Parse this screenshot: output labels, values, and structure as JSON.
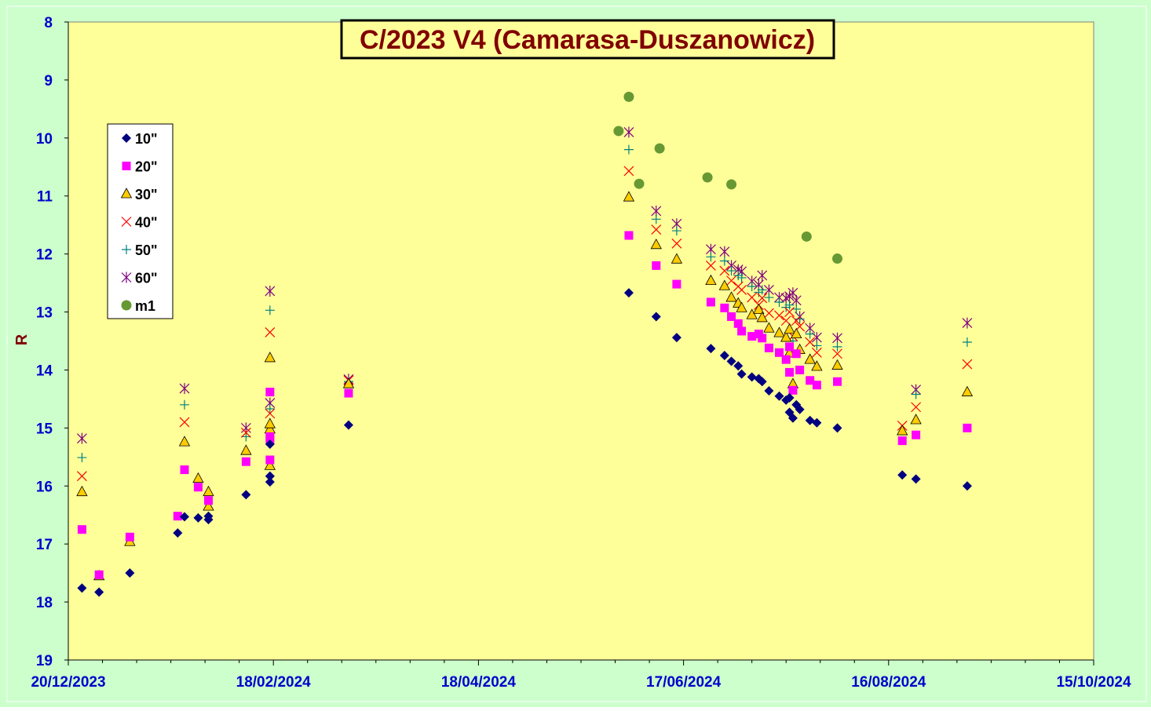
{
  "chart_data": {
    "type": "scatter",
    "title": "C/2023 V4 (Camarasa-Duszanowicz)",
    "ylabel": "R",
    "xlabel": "",
    "y_reversed": true,
    "ylim": [
      8,
      19
    ],
    "yticks": [
      8,
      9,
      10,
      11,
      12,
      13,
      14,
      15,
      16,
      17,
      18,
      19
    ],
    "xlim": [
      "2023-12-20",
      "2024-10-15"
    ],
    "xticks": [
      "20/12/2023",
      "18/02/2024",
      "18/04/2024",
      "17/06/2024",
      "16/08/2024",
      "15/10/2024"
    ],
    "grid": false,
    "legend_position": "top-left",
    "colors": {
      "page_background": "#ccffcc",
      "plot_background": "#ffff99",
      "axis_text": "#0000cc",
      "title_text": "#800000",
      "ylabel_text": "#800000",
      "series": {
        "10\"": "#000080",
        "20\"": "#ff00ff",
        "30\"": "#ffcc00",
        "40\"": "#ff0000",
        "50\"": "#008080",
        "60\"": "#800080",
        "m1": "#669933"
      }
    },
    "series": [
      {
        "name": "10\"",
        "marker": "diamond",
        "points": [
          [
            "2023-12-24",
            17.76
          ],
          [
            "2023-12-29",
            17.83
          ],
          [
            "2024-01-07",
            17.5
          ],
          [
            "2024-01-21",
            16.81
          ],
          [
            "2024-01-23",
            16.53
          ],
          [
            "2024-01-27",
            16.55
          ],
          [
            "2024-01-30",
            16.52
          ],
          [
            "2024-01-30",
            16.58
          ],
          [
            "2024-02-10",
            16.15
          ],
          [
            "2024-02-17",
            15.83
          ],
          [
            "2024-02-17",
            15.93
          ],
          [
            "2024-02-17",
            15.83
          ],
          [
            "2024-02-17",
            15.28
          ],
          [
            "2024-03-11",
            14.95
          ],
          [
            "2024-06-01",
            12.67
          ],
          [
            "2024-06-09",
            13.08
          ],
          [
            "2024-06-15",
            13.44
          ],
          [
            "2024-06-25",
            13.63
          ],
          [
            "2024-06-29",
            13.75
          ],
          [
            "2024-07-01",
            13.85
          ],
          [
            "2024-07-03",
            13.93
          ],
          [
            "2024-07-04",
            14.07
          ],
          [
            "2024-07-07",
            14.12
          ],
          [
            "2024-07-09",
            14.15
          ],
          [
            "2024-07-10",
            14.2
          ],
          [
            "2024-07-12",
            14.36
          ],
          [
            "2024-07-15",
            14.45
          ],
          [
            "2024-07-17",
            14.52
          ],
          [
            "2024-07-18",
            14.48
          ],
          [
            "2024-07-18",
            14.73
          ],
          [
            "2024-07-19",
            14.83
          ],
          [
            "2024-07-20",
            14.6
          ],
          [
            "2024-07-21",
            14.68
          ],
          [
            "2024-07-24",
            14.87
          ],
          [
            "2024-07-26",
            14.91
          ],
          [
            "2024-08-01",
            15.0
          ],
          [
            "2024-08-20",
            15.81
          ],
          [
            "2024-08-24",
            15.88
          ],
          [
            "2024-09-08",
            16.0
          ]
        ]
      },
      {
        "name": "20\"",
        "marker": "square",
        "points": [
          [
            "2023-12-24",
            16.75
          ],
          [
            "2023-12-29",
            17.53
          ],
          [
            "2024-01-07",
            16.88
          ],
          [
            "2024-01-21",
            16.52
          ],
          [
            "2024-01-23",
            15.72
          ],
          [
            "2024-01-27",
            16.02
          ],
          [
            "2024-01-30",
            16.25
          ],
          [
            "2024-02-10",
            15.58
          ],
          [
            "2024-02-17",
            15.2
          ],
          [
            "2024-02-17",
            15.55
          ],
          [
            "2024-02-17",
            15.15
          ],
          [
            "2024-02-17",
            14.38
          ],
          [
            "2024-03-11",
            14.4
          ],
          [
            "2024-06-01",
            11.68
          ],
          [
            "2024-06-09",
            12.2
          ],
          [
            "2024-06-15",
            12.52
          ],
          [
            "2024-06-25",
            12.83
          ],
          [
            "2024-06-29",
            12.93
          ],
          [
            "2024-07-01",
            13.08
          ],
          [
            "2024-07-03",
            13.2
          ],
          [
            "2024-07-04",
            13.33
          ],
          [
            "2024-07-07",
            13.42
          ],
          [
            "2024-07-09",
            13.38
          ],
          [
            "2024-07-10",
            13.45
          ],
          [
            "2024-07-12",
            13.62
          ],
          [
            "2024-07-15",
            13.7
          ],
          [
            "2024-07-17",
            13.82
          ],
          [
            "2024-07-18",
            13.6
          ],
          [
            "2024-07-18",
            14.04
          ],
          [
            "2024-07-19",
            14.35
          ],
          [
            "2024-07-20",
            13.72
          ],
          [
            "2024-07-21",
            14.0
          ],
          [
            "2024-07-24",
            14.18
          ],
          [
            "2024-07-26",
            14.26
          ],
          [
            "2024-08-01",
            14.2
          ],
          [
            "2024-08-20",
            15.22
          ],
          [
            "2024-08-24",
            15.12
          ],
          [
            "2024-09-08",
            15.0
          ]
        ]
      },
      {
        "name": "30\"",
        "marker": "triangle",
        "points": [
          [
            "2023-12-24",
            16.1
          ],
          [
            "2023-12-29",
            17.55
          ],
          [
            "2024-01-07",
            16.96
          ],
          [
            "2024-01-23",
            15.24
          ],
          [
            "2024-01-27",
            15.87
          ],
          [
            "2024-01-30",
            16.35
          ],
          [
            "2024-01-30",
            16.1
          ],
          [
            "2024-02-10",
            15.39
          ],
          [
            "2024-02-17",
            15.02
          ],
          [
            "2024-02-17",
            14.93
          ],
          [
            "2024-02-17",
            15.65
          ],
          [
            "2024-02-17",
            13.79
          ],
          [
            "2024-03-11",
            14.24
          ],
          [
            "2024-06-01",
            11.02
          ],
          [
            "2024-06-09",
            11.84
          ],
          [
            "2024-06-15",
            12.09
          ],
          [
            "2024-06-25",
            12.46
          ],
          [
            "2024-06-29",
            12.55
          ],
          [
            "2024-07-01",
            12.75
          ],
          [
            "2024-07-03",
            12.85
          ],
          [
            "2024-07-04",
            12.93
          ],
          [
            "2024-07-07",
            13.05
          ],
          [
            "2024-07-09",
            12.96
          ],
          [
            "2024-07-10",
            13.1
          ],
          [
            "2024-07-12",
            13.28
          ],
          [
            "2024-07-15",
            13.36
          ],
          [
            "2024-07-17",
            13.44
          ],
          [
            "2024-07-18",
            13.3
          ],
          [
            "2024-07-18",
            13.71
          ],
          [
            "2024-07-19",
            14.24
          ],
          [
            "2024-07-20",
            13.38
          ],
          [
            "2024-07-21",
            13.65
          ],
          [
            "2024-07-24",
            13.82
          ],
          [
            "2024-07-26",
            13.94
          ],
          [
            "2024-08-01",
            13.92
          ],
          [
            "2024-08-20",
            15.05
          ],
          [
            "2024-08-24",
            14.86
          ],
          [
            "2024-09-08",
            14.38
          ]
        ]
      },
      {
        "name": "40\"",
        "marker": "x",
        "points": [
          [
            "2023-12-24",
            15.83
          ],
          [
            "2024-01-23",
            14.9
          ],
          [
            "2024-02-10",
            15.08
          ],
          [
            "2024-02-17",
            14.75
          ],
          [
            "2024-02-17",
            13.35
          ],
          [
            "2024-03-11",
            14.18
          ],
          [
            "2024-06-01",
            10.57
          ],
          [
            "2024-06-09",
            11.58
          ],
          [
            "2024-06-15",
            11.82
          ],
          [
            "2024-06-25",
            12.2
          ],
          [
            "2024-06-29",
            12.29
          ],
          [
            "2024-07-01",
            12.46
          ],
          [
            "2024-07-03",
            12.56
          ],
          [
            "2024-07-04",
            12.62
          ],
          [
            "2024-07-07",
            12.75
          ],
          [
            "2024-07-09",
            12.88
          ],
          [
            "2024-07-10",
            12.76
          ],
          [
            "2024-07-12",
            13.02
          ],
          [
            "2024-07-15",
            13.06
          ],
          [
            "2024-07-17",
            13.15
          ],
          [
            "2024-07-18",
            13.0
          ],
          [
            "2024-07-19",
            13.42
          ],
          [
            "2024-07-20",
            13.15
          ],
          [
            "2024-07-21",
            13.25
          ],
          [
            "2024-07-24",
            13.52
          ],
          [
            "2024-07-26",
            13.7
          ],
          [
            "2024-08-01",
            13.72
          ],
          [
            "2024-08-20",
            14.96
          ],
          [
            "2024-08-24",
            14.64
          ],
          [
            "2024-09-08",
            13.9
          ]
        ]
      },
      {
        "name": "50\"",
        "marker": "plus",
        "points": [
          [
            "2023-12-24",
            15.51
          ],
          [
            "2024-01-23",
            14.6
          ],
          [
            "2024-02-10",
            15.15
          ],
          [
            "2024-02-17",
            14.67
          ],
          [
            "2024-02-17",
            12.97
          ],
          [
            "2024-03-11",
            14.2
          ],
          [
            "2024-06-01",
            10.2
          ],
          [
            "2024-06-09",
            11.4
          ],
          [
            "2024-06-15",
            11.6
          ],
          [
            "2024-06-25",
            12.05
          ],
          [
            "2024-06-29",
            12.12
          ],
          [
            "2024-07-01",
            12.29
          ],
          [
            "2024-07-03",
            12.37
          ],
          [
            "2024-07-04",
            12.41
          ],
          [
            "2024-07-07",
            12.56
          ],
          [
            "2024-07-09",
            12.66
          ],
          [
            "2024-07-10",
            12.62
          ],
          [
            "2024-07-12",
            12.75
          ],
          [
            "2024-07-15",
            12.83
          ],
          [
            "2024-07-17",
            12.92
          ],
          [
            "2024-07-18",
            12.88
          ],
          [
            "2024-07-19",
            13.5
          ],
          [
            "2024-07-20",
            12.95
          ],
          [
            "2024-07-21",
            13.12
          ],
          [
            "2024-07-24",
            13.38
          ],
          [
            "2024-07-26",
            13.58
          ],
          [
            "2024-08-01",
            13.6
          ],
          [
            "2024-08-24",
            14.42
          ],
          [
            "2024-09-08",
            13.52
          ]
        ]
      },
      {
        "name": "60\"",
        "marker": "star",
        "points": [
          [
            "2023-12-24",
            15.18
          ],
          [
            "2024-01-23",
            14.32
          ],
          [
            "2024-02-10",
            15.0
          ],
          [
            "2024-02-17",
            14.57
          ],
          [
            "2024-02-17",
            12.64
          ],
          [
            "2024-03-11",
            14.16
          ],
          [
            "2024-06-01",
            9.9
          ],
          [
            "2024-06-09",
            11.26
          ],
          [
            "2024-06-15",
            11.48
          ],
          [
            "2024-06-25",
            11.92
          ],
          [
            "2024-06-29",
            11.96
          ],
          [
            "2024-07-01",
            12.2
          ],
          [
            "2024-07-03",
            12.27
          ],
          [
            "2024-07-04",
            12.3
          ],
          [
            "2024-07-07",
            12.47
          ],
          [
            "2024-07-09",
            12.53
          ],
          [
            "2024-07-10",
            12.37
          ],
          [
            "2024-07-12",
            12.62
          ],
          [
            "2024-07-15",
            12.75
          ],
          [
            "2024-07-17",
            12.76
          ],
          [
            "2024-07-18",
            12.73
          ],
          [
            "2024-07-19",
            12.67
          ],
          [
            "2024-07-20",
            12.8
          ],
          [
            "2024-07-21",
            13.08
          ],
          [
            "2024-07-24",
            13.28
          ],
          [
            "2024-07-26",
            13.44
          ],
          [
            "2024-08-01",
            13.45
          ],
          [
            "2024-08-24",
            14.34
          ],
          [
            "2024-09-08",
            13.19
          ]
        ]
      },
      {
        "name": "m1",
        "marker": "circle",
        "points": [
          [
            "2024-05-29",
            9.88
          ],
          [
            "2024-06-01",
            9.29
          ],
          [
            "2024-06-04",
            10.79
          ],
          [
            "2024-06-10",
            10.18
          ],
          [
            "2024-06-24",
            10.68
          ],
          [
            "2024-07-01",
            10.8
          ],
          [
            "2024-07-23",
            11.7
          ],
          [
            "2024-08-01",
            12.08
          ]
        ]
      }
    ]
  }
}
